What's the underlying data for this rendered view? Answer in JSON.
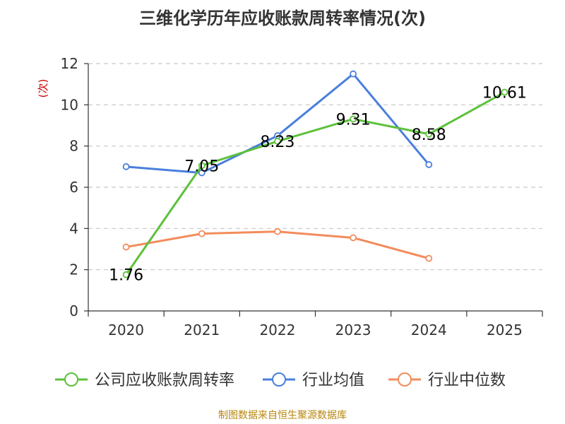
{
  "title": "三维化学历年应收账款周转率情况(次)",
  "source": "制图数据来自恒生聚源数据库",
  "colors": {
    "company": "#5cc13a",
    "industry_avg": "#4a7fdc",
    "industry_median": "#f28c5c",
    "grid": "#c8c8c8",
    "axis": "#333333"
  },
  "chart_data": {
    "type": "line",
    "title": "三维化学历年应收账款周转率情况(次)",
    "ylabel": "(次)",
    "xlabel": "",
    "categories": [
      "2020",
      "2021",
      "2022",
      "2023",
      "2024",
      "2025"
    ],
    "ylim": [
      0,
      12
    ],
    "yticks": [
      0,
      2,
      4,
      6,
      8,
      10,
      12
    ],
    "grid": true,
    "legend_position": "bottom",
    "series": [
      {
        "name": "公司应收账款周转率",
        "values": [
          1.76,
          7.05,
          8.23,
          9.31,
          8.58,
          10.61
        ],
        "labels": [
          "1.76",
          "7.05",
          "8.23",
          "9.31",
          "8.58",
          "10.61"
        ]
      },
      {
        "name": "行业均值",
        "values": [
          7.0,
          6.7,
          8.5,
          11.5,
          7.1,
          null
        ]
      },
      {
        "name": "行业中位数",
        "values": [
          3.1,
          3.75,
          3.85,
          3.55,
          2.55,
          null
        ]
      }
    ]
  }
}
